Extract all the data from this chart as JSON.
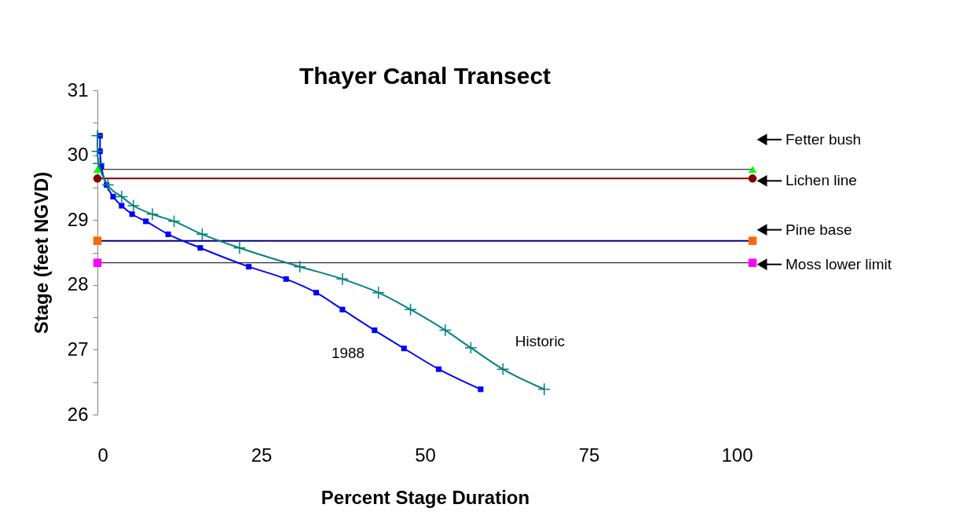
{
  "chart_data": {
    "type": "line",
    "title": "Thayer Canal Transect",
    "xlabel": "Percent Stage Duration",
    "ylabel": "Stage (feet NGVD)",
    "xlim": [
      0,
      100
    ],
    "xticks": [
      0,
      25,
      50,
      75,
      100
    ],
    "ylim": [
      26,
      31
    ],
    "yticks": [
      26,
      {
        "value": 26.5,
        "label": null
      },
      27,
      {
        "value": 27.5,
        "label": null
      },
      28,
      {
        "value": 28.5,
        "label": null
      },
      29,
      {
        "value": 29.5,
        "label": null
      },
      30,
      {
        "value": 30.5,
        "label": null
      },
      31
    ],
    "grid": false,
    "series": [
      {
        "name": "1988",
        "color": "#0000ff",
        "marker": "square",
        "x": [
          0.4,
          0.4,
          0.6,
          1.4,
          2.4,
          3.7,
          5.3,
          7.4,
          10.8,
          15.7,
          23.1,
          28.8,
          33.4,
          37.4,
          42.3,
          46.8,
          52.1,
          58.5
        ],
        "values": [
          30.3,
          30.06,
          29.83,
          29.54,
          29.36,
          29.22,
          29.09,
          28.98,
          28.78,
          28.57,
          28.28,
          28.09,
          27.88,
          27.62,
          27.3,
          27.02,
          26.7,
          26.39
        ]
      },
      {
        "name": "Historic",
        "color": "#008080",
        "marker": "cross",
        "x": [
          0,
          0,
          0.2,
          1.6,
          3.7,
          5.5,
          8.4,
          11.7,
          16.0,
          21.7,
          30.9,
          37.4,
          42.9,
          47.8,
          53.1,
          57.0,
          61.9,
          68.2
        ],
        "values": [
          30.3,
          30.06,
          29.87,
          29.54,
          29.36,
          29.22,
          29.09,
          28.98,
          28.78,
          28.57,
          28.28,
          28.09,
          27.88,
          27.62,
          27.3,
          27.03,
          26.7,
          26.39
        ]
      },
      {
        "type": "scatter",
        "color": "#00ff00",
        "marker": "triangle",
        "x": [
          0,
          100
        ],
        "values": [
          29.78,
          29.78
        ]
      },
      {
        "type": "scatter",
        "color": "#800000",
        "marker": "circle",
        "x": [
          0,
          100
        ],
        "values": [
          29.64,
          29.64
        ]
      },
      {
        "type": "scatter",
        "color": "#ff6600",
        "marker": "square",
        "x": [
          0,
          100
        ],
        "values": [
          28.68,
          28.68
        ]
      },
      {
        "type": "scatter",
        "color": "#ff00ff",
        "marker": "square",
        "x": [
          0,
          100
        ],
        "values": [
          28.34,
          28.34
        ]
      }
    ],
    "ref_lines": [
      {
        "axis": "y",
        "value": 29.78,
        "label": "Fetter bush",
        "color": "#000000"
      },
      {
        "axis": "y",
        "value": 29.64,
        "label": "Lichen line",
        "color": "#800000"
      },
      {
        "axis": "y",
        "value": 28.68,
        "label": "Pine base",
        "color": "#000080"
      },
      {
        "axis": "y",
        "value": 28.34,
        "label": "Moss lower limit",
        "color": "#000000"
      }
    ]
  }
}
